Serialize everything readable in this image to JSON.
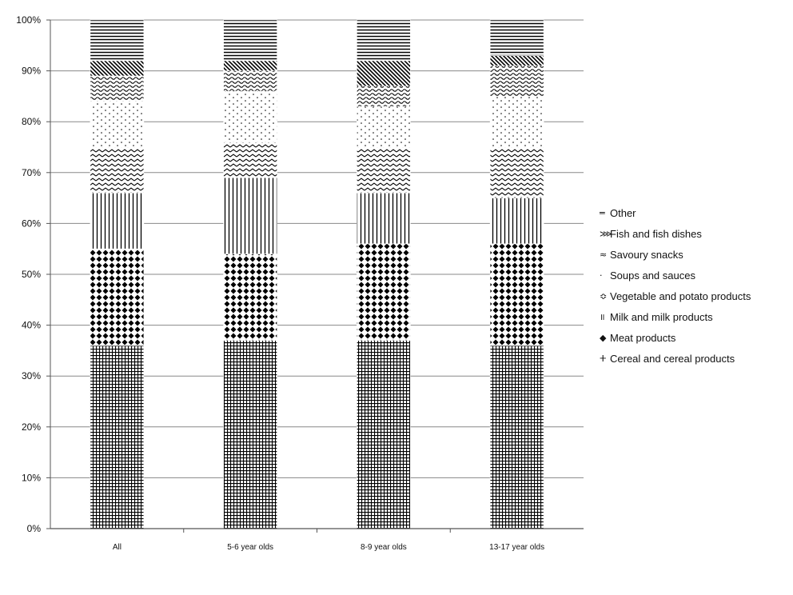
{
  "chart_data": {
    "type": "bar",
    "stacked": true,
    "normalized_percent": true,
    "categories": [
      "All",
      "5-6 year olds",
      "8-9 year olds",
      "13-17 year olds"
    ],
    "series": [
      {
        "name": "Cereal and cereal products",
        "values": [
          36,
          37,
          37,
          36
        ],
        "pattern": "grid",
        "legend_symbol": "ⵜ"
      },
      {
        "name": "Meat products",
        "values": [
          19,
          17,
          19,
          20
        ],
        "pattern": "diamonds",
        "legend_symbol": "◆"
      },
      {
        "name": "Milk and milk products",
        "values": [
          11,
          15,
          10,
          9
        ],
        "pattern": "vertical-lines",
        "legend_symbol": "॥"
      },
      {
        "name": "Vegetable and potato products",
        "values": [
          9,
          7,
          9,
          10
        ],
        "pattern": "zigzag",
        "legend_symbol": "≎"
      },
      {
        "name": "Soups and sauces",
        "values": [
          9,
          10,
          8,
          10
        ],
        "pattern": "dots",
        "legend_symbol": "·"
      },
      {
        "name": "Savoury snacks",
        "values": [
          5,
          4,
          4,
          6
        ],
        "pattern": "waves",
        "legend_symbol": "≈"
      },
      {
        "name": "Fish and fish dishes",
        "values": [
          3,
          2,
          5,
          2
        ],
        "pattern": "diagonal",
        "legend_symbol": "⋙"
      },
      {
        "name": "Other",
        "values": [
          8,
          8,
          8,
          7
        ],
        "pattern": "horizontal-lines",
        "legend_symbol": "═"
      }
    ],
    "y_ticks": [
      "0%",
      "10%",
      "20%",
      "30%",
      "40%",
      "50%",
      "60%",
      "70%",
      "80%",
      "90%",
      "100%"
    ],
    "ylim": [
      0,
      100
    ],
    "grid": true,
    "legend_position": "right",
    "legend_order": [
      "Other",
      "Fish and fish dishes",
      "Savoury snacks",
      "Soups and sauces",
      "Vegetable and potato products",
      "Milk and milk products",
      "Meat products",
      "Cereal and cereal products"
    ]
  }
}
